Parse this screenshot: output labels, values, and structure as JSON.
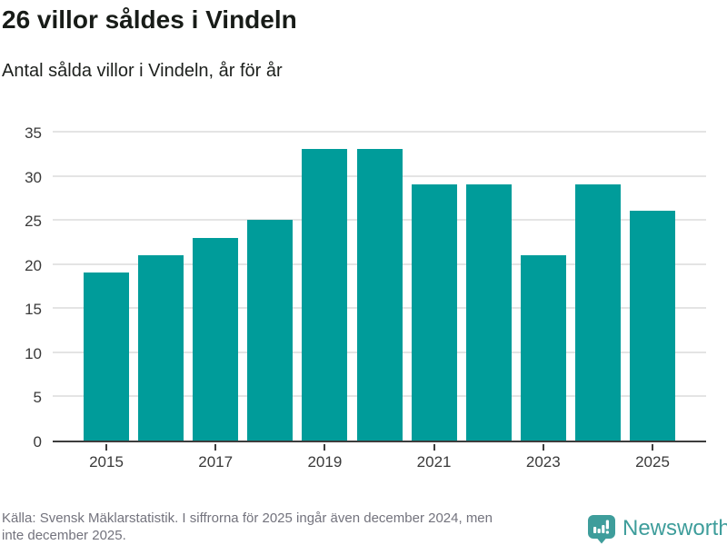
{
  "header": {
    "title": "26 villor såldes i Vindeln",
    "subtitle": "Antal sålda villor i Vindeln, år för år"
  },
  "chart_data": {
    "type": "bar",
    "categories": [
      "2015",
      "2016",
      "2017",
      "2018",
      "2019",
      "2020",
      "2021",
      "2022",
      "2023",
      "2024",
      "2025"
    ],
    "values": [
      19,
      21,
      23,
      25,
      33,
      33,
      29,
      29,
      21,
      29,
      26
    ],
    "title": "26 villor såldes i Vindeln",
    "subtitle": "Antal sålda villor i Vindeln, år för år",
    "xlabel": "",
    "ylabel": "",
    "ylim": [
      0,
      35
    ],
    "ytick_step": 5,
    "ytick_labels": [
      "0",
      "5",
      "10",
      "15",
      "20",
      "25",
      "30",
      "35"
    ],
    "xtick_labels": [
      "2015",
      "2017",
      "2019",
      "2021",
      "2023",
      "2025"
    ],
    "bar_color": "#009c9a",
    "grid": true,
    "grid_color": "#e4e4e4",
    "axis_color": "#3d3d3d",
    "legend": "none"
  },
  "footer": {
    "source_text": "Källa: Svensk Mäklarstatistik. I siffrorna för 2025 ingår även december 2024, men\ninte december 2025.",
    "brand_name": "Newsworthy",
    "brand_color": "#3e9d9b"
  }
}
